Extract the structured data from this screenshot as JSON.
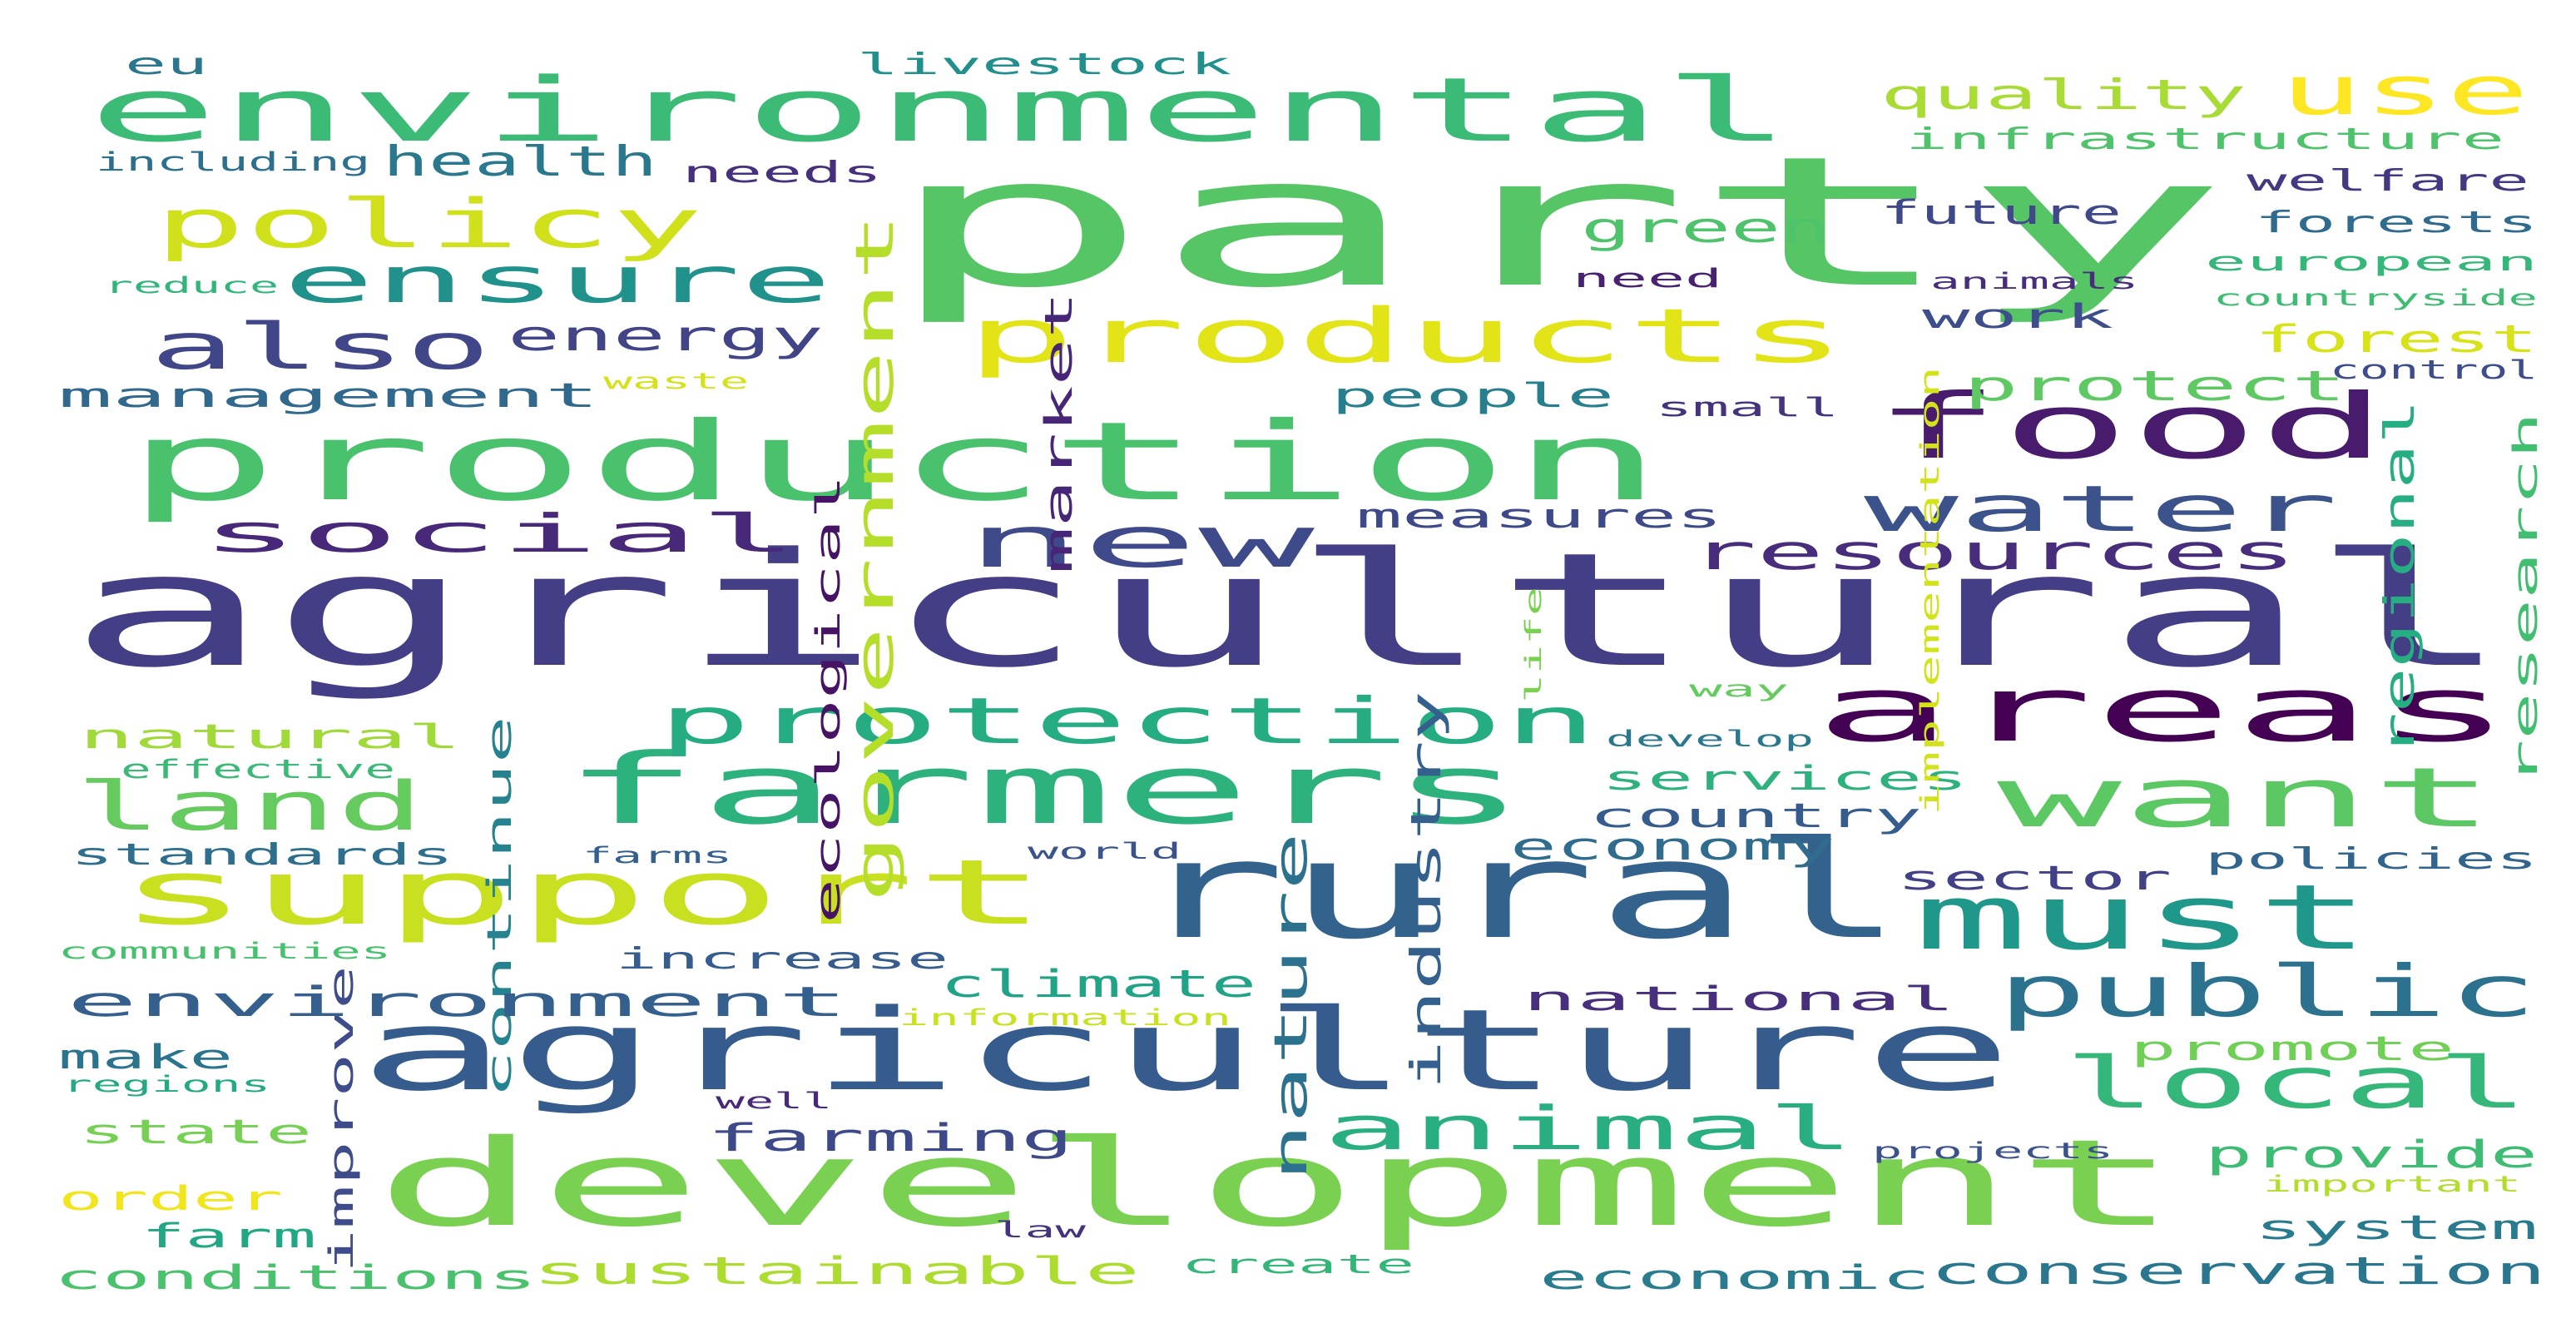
{
  "background": "#ffffff",
  "words": [
    {
      "text": "party",
      "color": "#56c566"
    },
    {
      "text": "agricultural",
      "color": "#433e85"
    },
    {
      "text": "production",
      "color": "#4ac16d"
    },
    {
      "text": "environmental",
      "color": "#3bbb75"
    },
    {
      "text": "development",
      "color": "#7ad151"
    },
    {
      "text": "agriculture",
      "color": "#365c8d"
    },
    {
      "text": "farmers",
      "color": "#2db27d"
    },
    {
      "text": "support",
      "color": "#c8e020"
    },
    {
      "text": "rural",
      "color": "#33638d"
    },
    {
      "text": "products",
      "color": "#e3e418"
    },
    {
      "text": "food",
      "color": "#481b6d"
    },
    {
      "text": "areas",
      "color": "#440154"
    },
    {
      "text": "protection",
      "color": "#25ac82"
    },
    {
      "text": "want",
      "color": "#5cc863"
    },
    {
      "text": "must",
      "color": "#1f988b"
    },
    {
      "text": "public",
      "color": "#2c718e"
    },
    {
      "text": "local",
      "color": "#35b779"
    },
    {
      "text": "new",
      "color": "#3e4a89"
    },
    {
      "text": "water",
      "color": "#3b528b"
    },
    {
      "text": "social",
      "color": "#482878"
    },
    {
      "text": "land",
      "color": "#65cb5e"
    },
    {
      "text": "ensure",
      "color": "#21918c"
    },
    {
      "text": "also",
      "color": "#404688"
    },
    {
      "text": "policy",
      "color": "#d0e11c"
    },
    {
      "text": "use",
      "color": "#fde725"
    },
    {
      "text": "resources",
      "color": "#472d7b"
    },
    {
      "text": "animal",
      "color": "#28ae80"
    },
    {
      "text": "quality",
      "color": "#a8db34"
    },
    {
      "text": "health",
      "color": "#2a788e"
    },
    {
      "text": "energy",
      "color": "#414487"
    },
    {
      "text": "management",
      "color": "#31688e"
    },
    {
      "text": "green",
      "color": "#4ec36b"
    },
    {
      "text": "future",
      "color": "#3f4889"
    },
    {
      "text": "work",
      "color": "#3d4e8a"
    },
    {
      "text": "forest",
      "color": "#d8e219"
    },
    {
      "text": "protect",
      "color": "#5ec962"
    },
    {
      "text": "people",
      "color": "#277f8e"
    },
    {
      "text": "measures",
      "color": "#3e4989"
    },
    {
      "text": "government",
      "color": "#b5de2b"
    },
    {
      "text": "market",
      "color": "#482677"
    },
    {
      "text": "ecological",
      "color": "#471365"
    },
    {
      "text": "continue",
      "color": "#26828e"
    },
    {
      "text": "industry",
      "color": "#34608d"
    },
    {
      "text": "nature",
      "color": "#2c728e"
    },
    {
      "text": "natural",
      "color": "#a0da39"
    },
    {
      "text": "effective",
      "color": "#3aba76"
    },
    {
      "text": "standards",
      "color": "#2e6f8e"
    },
    {
      "text": "farms",
      "color": "#35608d"
    },
    {
      "text": "world",
      "color": "#3b528b"
    },
    {
      "text": "communities",
      "color": "#48c16e"
    },
    {
      "text": "improve",
      "color": "#3e4c8a"
    },
    {
      "text": "increase",
      "color": "#365d8d"
    },
    {
      "text": "climate",
      "color": "#20a386"
    },
    {
      "text": "information",
      "color": "#cae11f"
    },
    {
      "text": "environment",
      "color": "#355f8d"
    },
    {
      "text": "make",
      "color": "#2b748e"
    },
    {
      "text": "regions",
      "color": "#23a983"
    },
    {
      "text": "state",
      "color": "#75d054"
    },
    {
      "text": "order",
      "color": "#f1e51d"
    },
    {
      "text": "farm",
      "color": "#22a785"
    },
    {
      "text": "conditions",
      "color": "#4ac16d"
    },
    {
      "text": "sustainable",
      "color": "#addc30"
    },
    {
      "text": "create",
      "color": "#34b679"
    },
    {
      "text": "economic",
      "color": "#287c8e"
    },
    {
      "text": "conservation",
      "color": "#2a768e"
    },
    {
      "text": "farming",
      "color": "#3e4989"
    },
    {
      "text": "well",
      "color": "#482979"
    },
    {
      "text": "law",
      "color": "#46337e"
    },
    {
      "text": "national",
      "color": "#472f7d"
    },
    {
      "text": "economy",
      "color": "#2f6c8e"
    },
    {
      "text": "country",
      "color": "#365c8d"
    },
    {
      "text": "services",
      "color": "#2db27d"
    },
    {
      "text": "sector",
      "color": "#424086"
    },
    {
      "text": "policies",
      "color": "#32658e"
    },
    {
      "text": "promote",
      "color": "#70cf57"
    },
    {
      "text": "provide",
      "color": "#3fbc73"
    },
    {
      "text": "important",
      "color": "#b2dd2d"
    },
    {
      "text": "system",
      "color": "#297a8e"
    },
    {
      "text": "projects",
      "color": "#3b528b"
    },
    {
      "text": "develop",
      "color": "#2a778e"
    },
    {
      "text": "way",
      "color": "#65cb5e"
    },
    {
      "text": "life",
      "color": "#7ad151"
    },
    {
      "text": "implementation",
      "color": "#d2e21b"
    },
    {
      "text": "small",
      "color": "#46337e"
    },
    {
      "text": "need",
      "color": "#482173"
    },
    {
      "text": "regional",
      "color": "#26ad81"
    },
    {
      "text": "research",
      "color": "#42be71"
    },
    {
      "text": "control",
      "color": "#3d4d8a"
    },
    {
      "text": "countryside",
      "color": "#3fbc73"
    },
    {
      "text": "european",
      "color": "#35b779"
    },
    {
      "text": "animals",
      "color": "#472d7b"
    },
    {
      "text": "forests",
      "color": "#2f6b8e"
    },
    {
      "text": "welfare",
      "color": "#453882"
    },
    {
      "text": "infrastructure",
      "color": "#4ec36b"
    },
    {
      "text": "livestock",
      "color": "#21908d"
    },
    {
      "text": "eu",
      "color": "#2a768e"
    },
    {
      "text": "including",
      "color": "#2d708e"
    },
    {
      "text": "needs",
      "color": "#46307e"
    },
    {
      "text": "reduce",
      "color": "#31b57b"
    },
    {
      "text": "waste",
      "color": "#d5e21a"
    }
  ]
}
